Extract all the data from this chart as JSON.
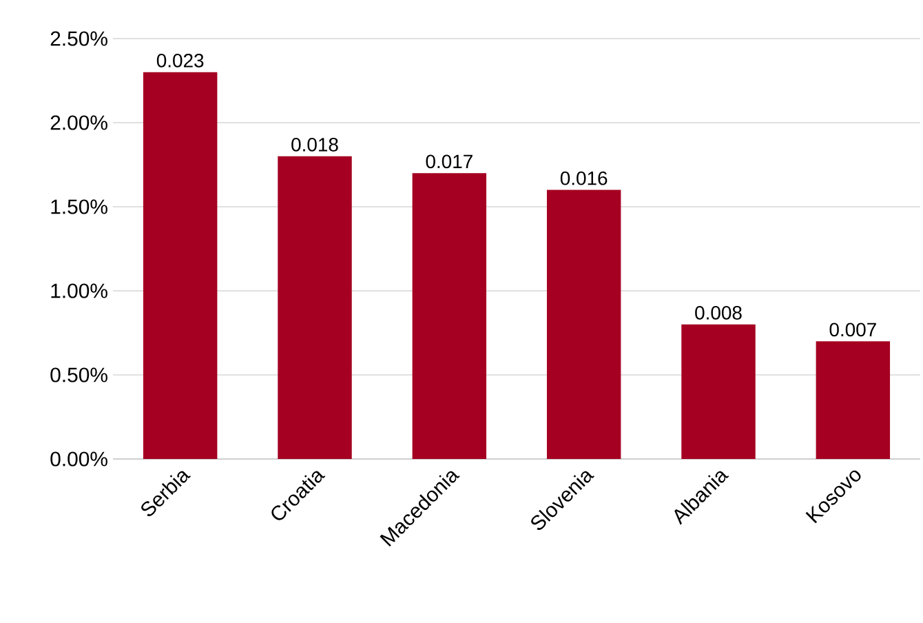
{
  "chart_data": {
    "type": "bar",
    "categories": [
      "Serbia",
      "Croatia",
      "Macedonia",
      "Slovenia",
      "Albania",
      "Kosovo"
    ],
    "values": [
      0.023,
      0.018,
      0.017,
      0.016,
      0.008,
      0.007
    ],
    "color": "#a50021",
    "ylim": [
      0,
      0.025
    ],
    "yticks": [
      {
        "value": 0,
        "label": "0.00%"
      },
      {
        "value": 0.005,
        "label": "0.50%"
      },
      {
        "value": 0.01,
        "label": "1.00%"
      },
      {
        "value": 0.015,
        "label": "1.50%"
      },
      {
        "value": 0.02,
        "label": "2.00%"
      },
      {
        "value": 0.025,
        "label": "2.50%"
      }
    ],
    "grid": "y",
    "data_labels": true
  }
}
